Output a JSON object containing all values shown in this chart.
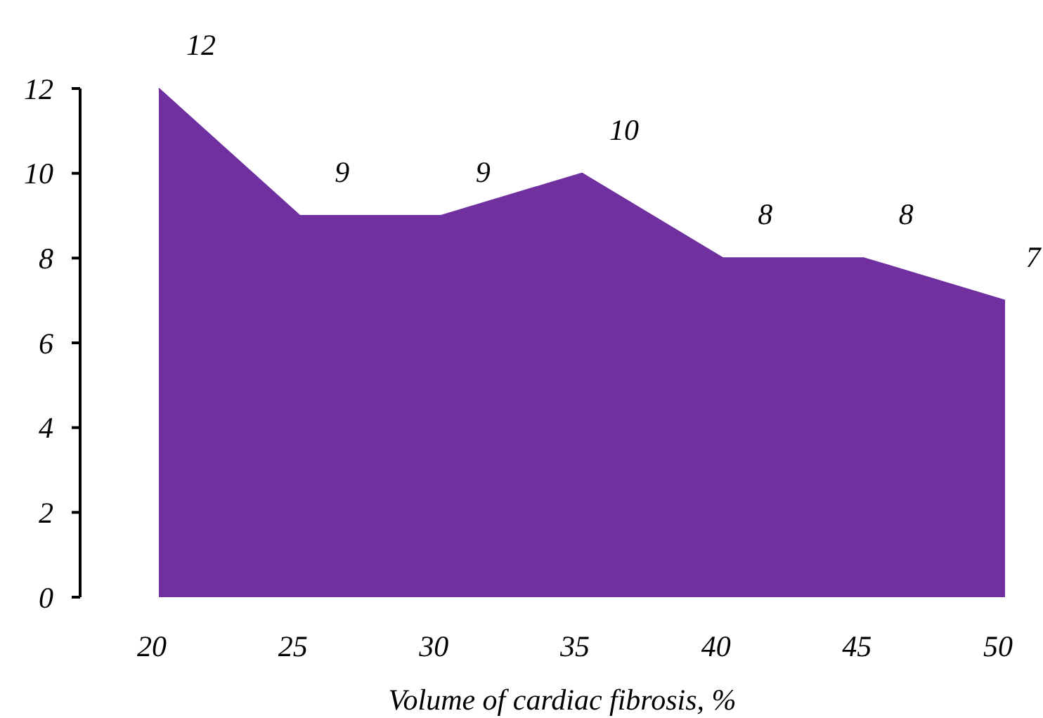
{
  "chart_data": {
    "type": "area",
    "xlabel": "Volume of cardiac fibrosis, %",
    "x": [
      20,
      25,
      30,
      35,
      40,
      45,
      50
    ],
    "values": [
      12,
      9,
      9,
      10,
      8,
      8,
      7
    ],
    "color": "#7030a0",
    "xlim": [
      20,
      50
    ],
    "xticks": [
      20,
      25,
      30,
      35,
      40,
      45,
      50
    ],
    "ylim": [
      0,
      12
    ],
    "yticks": [
      0,
      2,
      4,
      6,
      8,
      10,
      12
    ],
    "data_labels": true,
    "grid": false
  }
}
